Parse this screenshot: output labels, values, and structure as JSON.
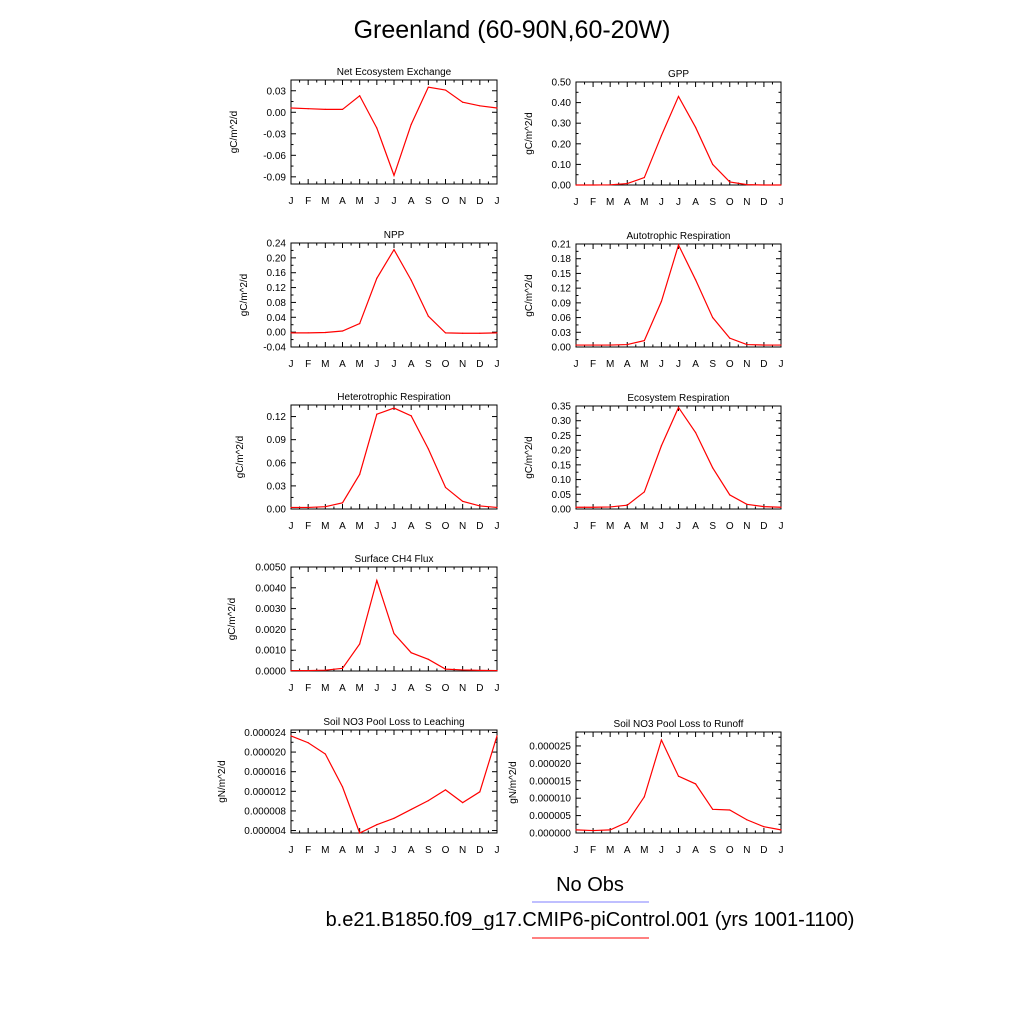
{
  "figure_title": "Greenland (60-90N,60-20W)",
  "legend": {
    "entries": [
      {
        "label": "No Obs",
        "color": "#7f7fff"
      },
      {
        "label": "b.e21.B1850.f09_g17.CMIP6-piControl.001 (yrs 1001-1100)",
        "color": "#ff0000"
      }
    ]
  },
  "chart_data": [
    {
      "type": "line",
      "title": "Net Ecosystem Exchange",
      "ylabel": "gC/m^2/d",
      "categories": [
        "J",
        "F",
        "M",
        "A",
        "M",
        "J",
        "J",
        "A",
        "S",
        "O",
        "N",
        "D",
        "J"
      ],
      "ylim": [
        -0.1,
        0.045
      ],
      "yticks": [
        "0.03",
        "0.00",
        "-0.03",
        "-0.06",
        "-0.09"
      ],
      "ytick_values": [
        0.03,
        0.0,
        -0.03,
        -0.06,
        -0.09
      ],
      "series": [
        {
          "color": "#ff0000",
          "values": [
            0.006,
            0.005,
            0.004,
            0.004,
            0.023,
            -0.022,
            -0.088,
            -0.017,
            0.035,
            0.031,
            0.014,
            0.009,
            0.006
          ]
        }
      ]
    },
    {
      "type": "line",
      "title": "GPP",
      "ylabel": "gC/m^2/d",
      "categories": [
        "J",
        "F",
        "M",
        "A",
        "M",
        "J",
        "J",
        "A",
        "S",
        "O",
        "N",
        "D",
        "J"
      ],
      "ylim": [
        0,
        0.5
      ],
      "yticks": [
        "0.50",
        "0.40",
        "0.30",
        "0.20",
        "0.10",
        "0.00"
      ],
      "ytick_values": [
        0.5,
        0.4,
        0.3,
        0.2,
        0.1,
        0.0
      ],
      "series": [
        {
          "color": "#ff0000",
          "values": [
            0.0,
            0.0,
            0.001,
            0.007,
            0.036,
            0.24,
            0.43,
            0.28,
            0.1,
            0.015,
            0.002,
            0.0,
            0.0
          ]
        }
      ]
    },
    {
      "type": "line",
      "title": "NPP",
      "ylabel": "gC/m^2/d",
      "categories": [
        "J",
        "F",
        "M",
        "A",
        "M",
        "J",
        "J",
        "A",
        "S",
        "O",
        "N",
        "D",
        "J"
      ],
      "ylim": [
        -0.04,
        0.24
      ],
      "yticks": [
        "0.24",
        "0.20",
        "0.16",
        "0.12",
        "0.08",
        "0.04",
        "0.00",
        "-0.04"
      ],
      "ytick_values": [
        0.24,
        0.2,
        0.16,
        0.12,
        0.08,
        0.04,
        0.0,
        -0.04
      ],
      "series": [
        {
          "color": "#ff0000",
          "values": [
            -0.002,
            -0.002,
            -0.001,
            0.003,
            0.023,
            0.145,
            0.222,
            0.14,
            0.043,
            -0.002,
            -0.003,
            -0.003,
            -0.002
          ]
        }
      ]
    },
    {
      "type": "line",
      "title": "Autotrophic Respiration",
      "ylabel": "gC/m^2/d",
      "categories": [
        "J",
        "F",
        "M",
        "A",
        "M",
        "J",
        "J",
        "A",
        "S",
        "O",
        "N",
        "D",
        "J"
      ],
      "ylim": [
        0,
        0.21
      ],
      "yticks": [
        "0.21",
        "0.18",
        "0.15",
        "0.12",
        "0.09",
        "0.06",
        "0.03",
        "0.00"
      ],
      "ytick_values": [
        0.21,
        0.18,
        0.15,
        0.12,
        0.09,
        0.06,
        0.03,
        0.0
      ],
      "series": [
        {
          "color": "#ff0000",
          "values": [
            0.004,
            0.004,
            0.004,
            0.005,
            0.013,
            0.093,
            0.208,
            0.137,
            0.06,
            0.018,
            0.005,
            0.004,
            0.004
          ]
        }
      ]
    },
    {
      "type": "line",
      "title": "Heterotrophic Respiration",
      "ylabel": "gC/m^2/d",
      "categories": [
        "J",
        "F",
        "M",
        "A",
        "M",
        "J",
        "J",
        "A",
        "S",
        "O",
        "N",
        "D",
        "J"
      ],
      "ylim": [
        0,
        0.135
      ],
      "yticks": [
        "0.12",
        "0.09",
        "0.06",
        "0.03",
        "0.00"
      ],
      "ytick_values": [
        0.12,
        0.09,
        0.06,
        0.03,
        0.0
      ],
      "series": [
        {
          "color": "#ff0000",
          "values": [
            0.002,
            0.002,
            0.003,
            0.008,
            0.045,
            0.123,
            0.131,
            0.121,
            0.078,
            0.028,
            0.01,
            0.004,
            0.002
          ]
        }
      ]
    },
    {
      "type": "line",
      "title": "Ecosystem Respiration",
      "ylabel": "gC/m^2/d",
      "categories": [
        "J",
        "F",
        "M",
        "A",
        "M",
        "J",
        "J",
        "A",
        "S",
        "O",
        "N",
        "D",
        "J"
      ],
      "ylim": [
        0,
        0.35
      ],
      "yticks": [
        "0.35",
        "0.30",
        "0.25",
        "0.20",
        "0.15",
        "0.10",
        "0.05",
        "0.00"
      ],
      "ytick_values": [
        0.35,
        0.3,
        0.25,
        0.2,
        0.15,
        0.1,
        0.05,
        0.0
      ],
      "series": [
        {
          "color": "#ff0000",
          "values": [
            0.006,
            0.006,
            0.007,
            0.013,
            0.058,
            0.215,
            0.345,
            0.26,
            0.14,
            0.048,
            0.016,
            0.008,
            0.006
          ]
        }
      ]
    },
    {
      "type": "line",
      "title": "Surface CH4 Flux",
      "ylabel": "gC/m^2/d",
      "categories": [
        "J",
        "F",
        "M",
        "A",
        "M",
        "J",
        "J",
        "A",
        "S",
        "O",
        "N",
        "D",
        "J"
      ],
      "ylim": [
        0,
        0.005
      ],
      "yticks": [
        "0.0050",
        "0.0040",
        "0.0030",
        "0.0020",
        "0.0010",
        "0.0000"
      ],
      "ytick_values": [
        0.005,
        0.004,
        0.003,
        0.002,
        0.001,
        0.0
      ],
      "series": [
        {
          "color": "#ff0000",
          "values": [
            2e-05,
            2e-05,
            4e-05,
            0.00013,
            0.0013,
            0.00435,
            0.0018,
            0.00088,
            0.00056,
            9e-05,
            5e-05,
            3e-05,
            2e-05
          ]
        }
      ]
    },
    {
      "type": "line",
      "title": "Soil NO3 Pool Loss to Leaching",
      "ylabel": "gN/m^2/d",
      "categories": [
        "J",
        "F",
        "M",
        "A",
        "M",
        "J",
        "J",
        "A",
        "S",
        "O",
        "N",
        "D",
        "J"
      ],
      "ylim": [
        3.5e-06,
        2.45e-05
      ],
      "yticks": [
        "0.000024",
        "0.000020",
        "0.000016",
        "0.000012",
        "0.000008",
        "0.000004"
      ],
      "ytick_values": [
        2.4e-05,
        2e-05,
        1.6e-05,
        1.2e-05,
        8e-06,
        4e-06
      ],
      "series": [
        {
          "color": "#ff0000",
          "values": [
            2.33e-05,
            2.19e-05,
            1.96e-05,
            1.29e-05,
            3.5e-06,
            5.2e-06,
            6.5e-06,
            8.3e-06,
            1.01e-05,
            1.23e-05,
            9.7e-06,
            1.19e-05,
            2.33e-05
          ]
        }
      ]
    },
    {
      "type": "line",
      "title": "Soil NO3 Pool Loss to Runoff",
      "ylabel": "gN/m^2/d",
      "categories": [
        "J",
        "F",
        "M",
        "A",
        "M",
        "J",
        "J",
        "A",
        "S",
        "O",
        "N",
        "D",
        "J"
      ],
      "ylim": [
        0,
        2.9e-05
      ],
      "yticks": [
        "0.000025",
        "0.000020",
        "0.000015",
        "0.000010",
        "0.000005",
        "0.000000"
      ],
      "ytick_values": [
        2.5e-05,
        2e-05,
        1.5e-05,
        1e-05,
        5e-06,
        0.0
      ],
      "series": [
        {
          "color": "#ff0000",
          "values": [
            9e-07,
            7e-07,
            9e-07,
            3.1e-06,
            1.04e-05,
            2.67e-05,
            1.63e-05,
            1.41e-05,
            6.8e-06,
            6.6e-06,
            3.8e-06,
            1.8e-06,
            9e-07
          ]
        }
      ]
    }
  ]
}
